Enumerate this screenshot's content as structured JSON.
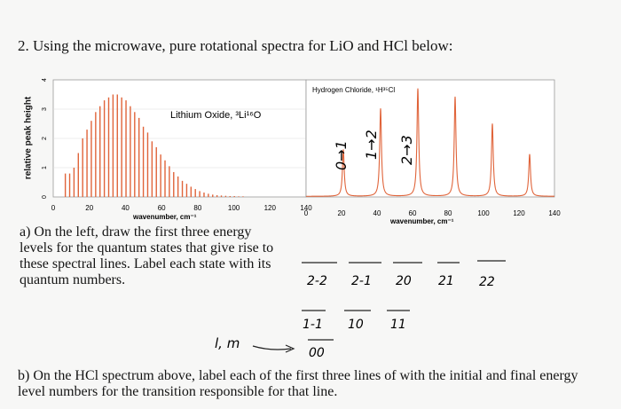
{
  "question": {
    "title": "2. Using the microwave, pure rotational spectra for LiO and HCl below:",
    "part_a": "a) On the left, draw the first three energy levels for the quantum states that give rise to these spectral lines. Label each state with its quantum numbers.",
    "part_b": "b) On the HCl spectrum above, label each of the first three lines of with the initial and final energy level numbers for the transition responsible for that line."
  },
  "chart_data": [
    {
      "type": "bar",
      "title": "Lithium Oxide, ³Li¹⁶O",
      "ylabel": "relative peak height",
      "xlabel": "wavenumber, cm⁻¹",
      "xlim": [
        0,
        140
      ],
      "ylim": [
        0,
        4
      ],
      "xticks": [
        "0",
        "20",
        "40",
        "60",
        "80",
        "100",
        "120",
        "140"
      ],
      "yticks": [
        "0",
        "1",
        "2",
        "3",
        "4"
      ],
      "x": [
        6.7,
        9.1,
        11.5,
        13.9,
        16.3,
        18.7,
        21.1,
        23.5,
        25.9,
        28.3,
        30.7,
        33.1,
        35.5,
        37.9,
        40.3,
        42.7,
        45.1,
        47.5,
        49.9,
        52.3,
        54.7,
        57.1,
        59.5,
        61.9,
        64.3,
        66.7,
        69.1,
        71.5,
        73.9,
        76.3,
        78.7,
        81.1,
        83.5,
        85.9,
        88.3,
        90.7,
        93.1,
        95.5,
        97.9,
        100.3,
        102.7,
        105.1
      ],
      "values": [
        0.8,
        0.8,
        1.0,
        1.5,
        2.0,
        2.3,
        2.6,
        2.9,
        3.1,
        3.3,
        3.4,
        3.5,
        3.5,
        3.4,
        3.3,
        3.1,
        2.9,
        2.7,
        2.4,
        2.2,
        1.9,
        1.7,
        1.45,
        1.25,
        1.05,
        0.85,
        0.7,
        0.55,
        0.45,
        0.35,
        0.27,
        0.2,
        0.15,
        0.11,
        0.08,
        0.06,
        0.05,
        0.04,
        0.03,
        0.03,
        0.02,
        0.02
      ]
    },
    {
      "type": "line",
      "title": "Hydrogen Chloride, ¹H³⁵Cl",
      "xlabel": "wavenumber, cm⁻¹",
      "xlim": [
        0,
        140
      ],
      "xticks": [
        "0",
        "20",
        "40",
        "60",
        "80",
        "100",
        "120",
        "140"
      ],
      "peaks_x": [
        21,
        42,
        63,
        84,
        105,
        126
      ],
      "peaks_height": [
        0.4,
        0.75,
        0.92,
        0.85,
        0.62,
        0.36
      ]
    }
  ],
  "handwriting": {
    "hcl_labels": [
      "0→1",
      "1→2",
      "2→3"
    ],
    "levels_row1": [
      "2-2",
      "2-1",
      "20",
      "21",
      "22"
    ],
    "levels_row2": [
      "1-1",
      "10",
      "11"
    ],
    "level_row3": "00",
    "lm_note": "l, m"
  }
}
